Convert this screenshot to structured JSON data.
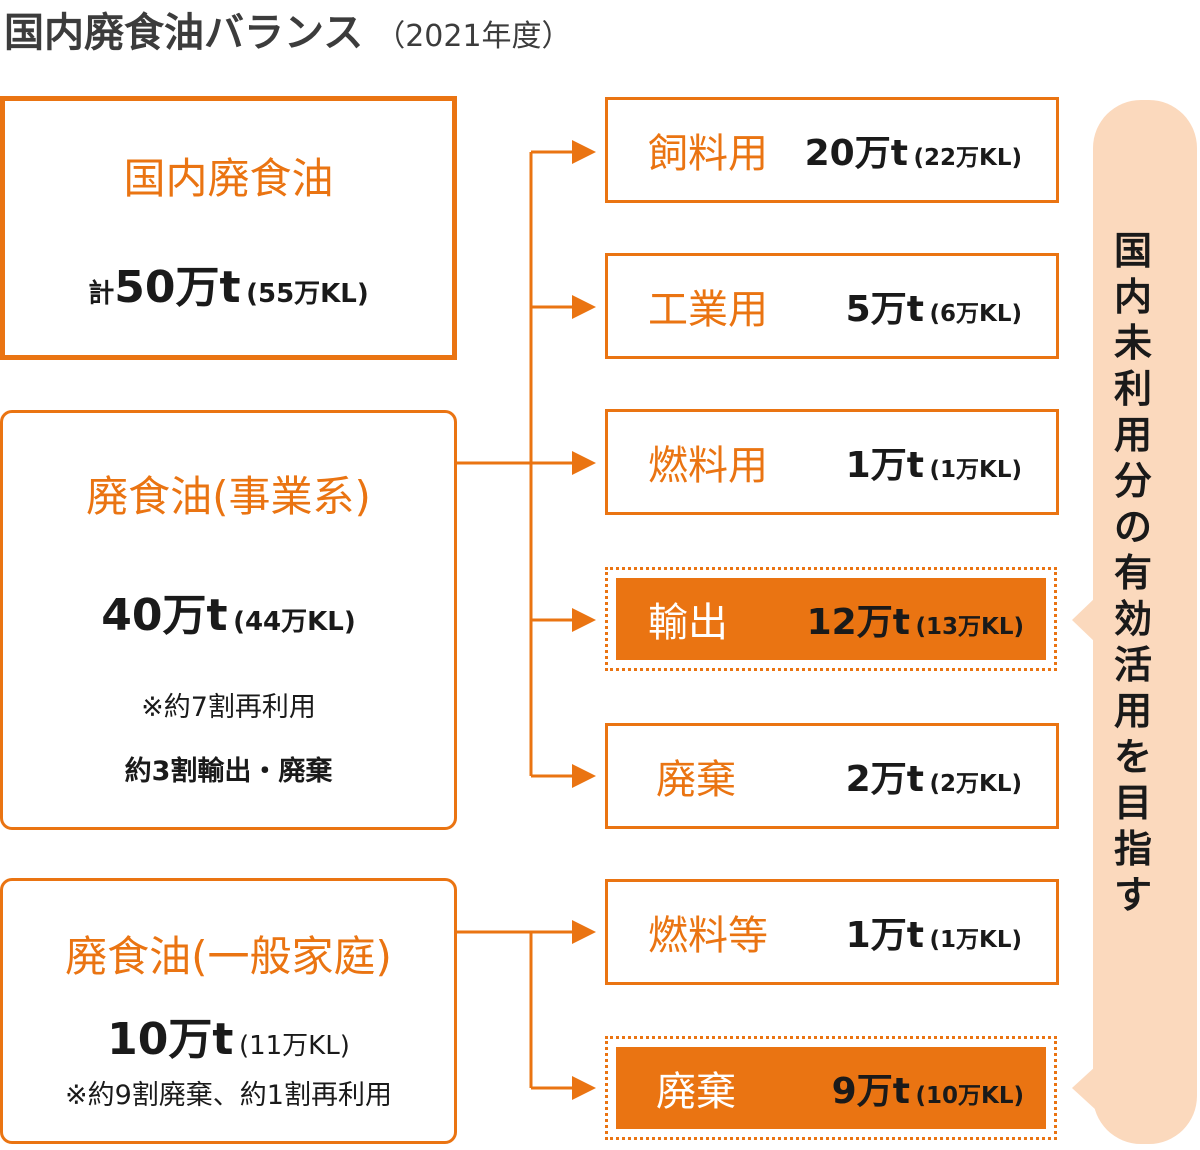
{
  "title": "国内廃食油バランス",
  "year": "（2021年度）",
  "sources": {
    "total": {
      "name": "国内廃食油",
      "prefix": "計",
      "amount": "50万t",
      "kl": "(55万KL)"
    },
    "business": {
      "name": "廃食油(事業系)",
      "amount": "40万t",
      "kl": "(44万KL)",
      "note1": "※約7割再利用",
      "note2": "約3割輸出・廃棄"
    },
    "household": {
      "name": "廃食油(一般家庭)",
      "amount": "10万t",
      "kl": "(11万KL)",
      "note": "※約9割廃棄、約1割再利用"
    }
  },
  "destinations": [
    {
      "label": "飼料用",
      "amount": "20万t",
      "kl": "(22万KL)",
      "from": "business",
      "highlight": false
    },
    {
      "label": "工業用",
      "amount": "5万t",
      "kl": "(6万KL)",
      "from": "business",
      "highlight": false
    },
    {
      "label": "燃料用",
      "amount": "1万t",
      "kl": "(1万KL)",
      "from": "business",
      "highlight": false
    },
    {
      "label": "輸出",
      "amount": "12万t",
      "kl": "(13万KL)",
      "from": "business",
      "highlight": true
    },
    {
      "label": "廃棄",
      "amount": "2万t",
      "kl": "(2万KL)",
      "from": "business",
      "highlight": false
    },
    {
      "label": "燃料等",
      "amount": "1万t",
      "kl": "(1万KL)",
      "from": "household",
      "highlight": false
    },
    {
      "label": "廃棄",
      "amount": "9万t",
      "kl": "(10万KL)",
      "from": "household",
      "highlight": true
    }
  ],
  "goal": "国内未利用分の有効活用を目指す",
  "colors": {
    "accent": "#ea7412",
    "callout_bg": "#fbd9bd",
    "text": "#1a1a1a"
  }
}
